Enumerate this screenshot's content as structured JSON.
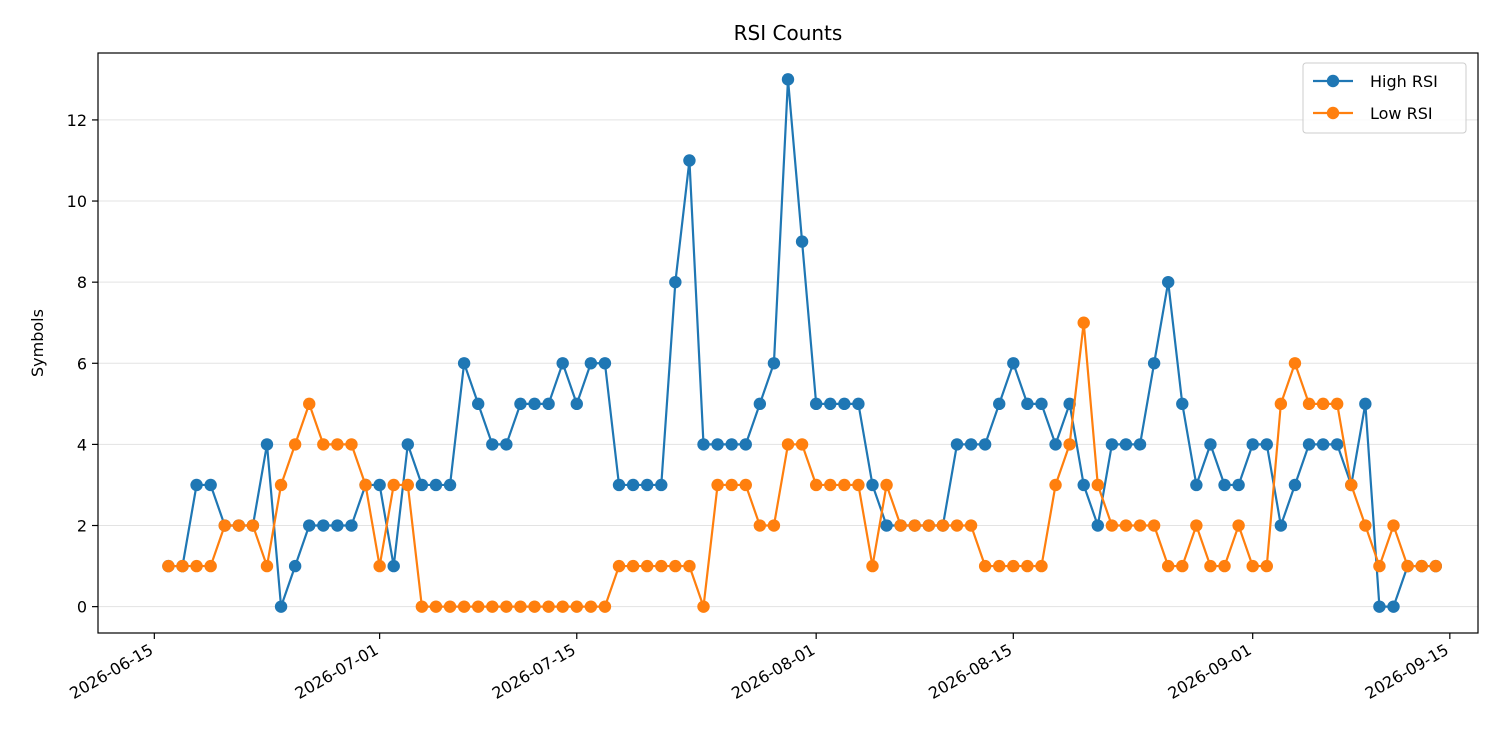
{
  "chart_data": {
    "type": "line",
    "title": "RSI Counts",
    "xlabel": "",
    "ylabel": "Symbols",
    "x_range": [
      "2026-06-11",
      "2026-09-17"
    ],
    "ylim": [
      -0.65,
      13.65
    ],
    "y_ticks": [
      0,
      2,
      4,
      6,
      8,
      10,
      12
    ],
    "x_ticks": [
      "2026-06-15",
      "2026-07-01",
      "2026-07-15",
      "2026-08-01",
      "2026-08-15",
      "2026-09-01",
      "2026-09-15"
    ],
    "grid": "horizontal",
    "legend_position": "top-right",
    "x": [
      "2026-06-16",
      "2026-06-17",
      "2026-06-18",
      "2026-06-19",
      "2026-06-20",
      "2026-06-21",
      "2026-06-22",
      "2026-06-23",
      "2026-06-24",
      "2026-06-25",
      "2026-06-26",
      "2026-06-27",
      "2026-06-28",
      "2026-06-29",
      "2026-06-30",
      "2026-07-01",
      "2026-07-02",
      "2026-07-03",
      "2026-07-04",
      "2026-07-05",
      "2026-07-06",
      "2026-07-07",
      "2026-07-08",
      "2026-07-09",
      "2026-07-10",
      "2026-07-11",
      "2026-07-12",
      "2026-07-13",
      "2026-07-14",
      "2026-07-15",
      "2026-07-16",
      "2026-07-17",
      "2026-07-18",
      "2026-07-19",
      "2026-07-20",
      "2026-07-21",
      "2026-07-22",
      "2026-07-23",
      "2026-07-24",
      "2026-07-25",
      "2026-07-26",
      "2026-07-27",
      "2026-07-28",
      "2026-07-29",
      "2026-07-30",
      "2026-07-31",
      "2026-08-01",
      "2026-08-02",
      "2026-08-03",
      "2026-08-04",
      "2026-08-05",
      "2026-08-06",
      "2026-08-07",
      "2026-08-08",
      "2026-08-09",
      "2026-08-10",
      "2026-08-11",
      "2026-08-12",
      "2026-08-13",
      "2026-08-14",
      "2026-08-15",
      "2026-08-16",
      "2026-08-17",
      "2026-08-18",
      "2026-08-19",
      "2026-08-20",
      "2026-08-21",
      "2026-08-22",
      "2026-08-23",
      "2026-08-24",
      "2026-08-25",
      "2026-08-26",
      "2026-08-27",
      "2026-08-28",
      "2026-08-29",
      "2026-08-30",
      "2026-08-31",
      "2026-09-01",
      "2026-09-02",
      "2026-09-03",
      "2026-09-04",
      "2026-09-05",
      "2026-09-06",
      "2026-09-07",
      "2026-09-08",
      "2026-09-09",
      "2026-09-10",
      "2026-09-11",
      "2026-09-12",
      "2026-09-13",
      "2026-09-14"
    ],
    "series": [
      {
        "name": "High RSI",
        "color": "#1f77b4",
        "values": [
          1,
          1,
          3,
          3,
          2,
          2,
          2,
          4,
          0,
          1,
          2,
          2,
          2,
          2,
          3,
          3,
          1,
          4,
          3,
          3,
          3,
          6,
          5,
          4,
          4,
          5,
          5,
          5,
          6,
          5,
          6,
          6,
          3,
          3,
          3,
          3,
          8,
          11,
          4,
          4,
          4,
          4,
          5,
          6,
          13,
          9,
          5,
          5,
          5,
          5,
          3,
          2,
          2,
          2,
          2,
          2,
          4,
          4,
          4,
          5,
          6,
          5,
          5,
          4,
          5,
          3,
          2,
          4,
          4,
          4,
          6,
          8,
          5,
          3,
          4,
          3,
          3,
          4,
          4,
          2,
          3,
          4,
          4,
          4,
          3,
          5,
          0,
          0,
          1,
          1,
          1
        ]
      },
      {
        "name": "Low RSI",
        "color": "#ff7f0e",
        "values": [
          1,
          1,
          1,
          1,
          2,
          2,
          2,
          1,
          3,
          4,
          5,
          4,
          4,
          4,
          3,
          1,
          3,
          3,
          0,
          0,
          0,
          0,
          0,
          0,
          0,
          0,
          0,
          0,
          0,
          0,
          0,
          0,
          1,
          1,
          1,
          1,
          1,
          1,
          0,
          3,
          3,
          3,
          2,
          2,
          4,
          4,
          3,
          3,
          3,
          3,
          1,
          3,
          2,
          2,
          2,
          2,
          2,
          2,
          1,
          1,
          1,
          1,
          1,
          3,
          4,
          7,
          3,
          2,
          2,
          2,
          2,
          1,
          1,
          2,
          1,
          1,
          2,
          1,
          1,
          5,
          6,
          5,
          5,
          5,
          3,
          2,
          1,
          2,
          1,
          1,
          1
        ]
      }
    ]
  }
}
